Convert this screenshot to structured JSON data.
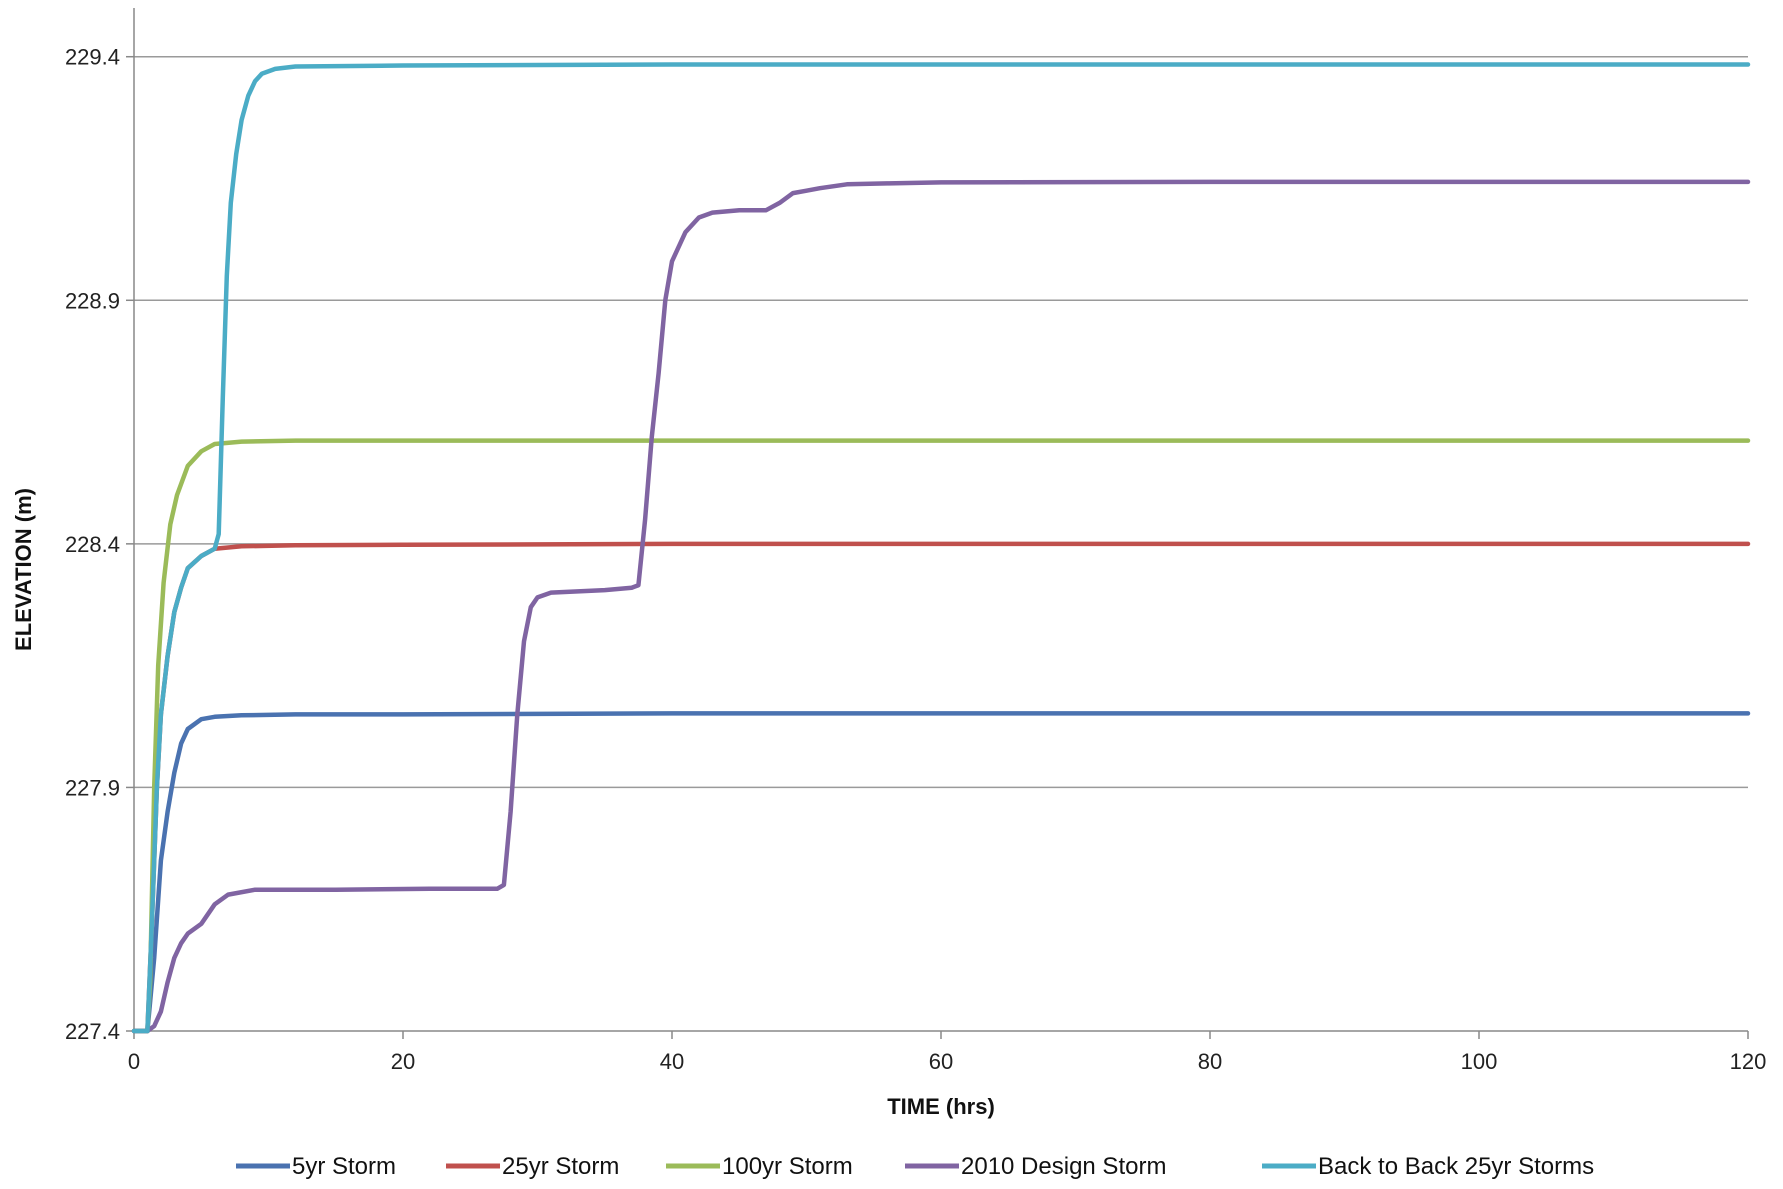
{
  "chart_data": {
    "type": "line",
    "title": "",
    "xlabel": "TIME (hrs)",
    "ylabel": "ELEVATION (m)",
    "xlim": [
      0,
      120
    ],
    "ylim": [
      227.4,
      229.5
    ],
    "x_ticks": [
      0,
      20,
      40,
      60,
      80,
      100,
      120
    ],
    "y_ticks": [
      227.4,
      227.9,
      228.4,
      228.9,
      229.4
    ],
    "grid": "horizontal",
    "legend_position": "bottom",
    "series": [
      {
        "name": "5yr Storm",
        "color": "#4a72b0",
        "points": [
          [
            0,
            227.4
          ],
          [
            1,
            227.4
          ],
          [
            1.5,
            227.55
          ],
          [
            2,
            227.75
          ],
          [
            2.5,
            227.85
          ],
          [
            3,
            227.93
          ],
          [
            3.5,
            227.99
          ],
          [
            4,
            228.02
          ],
          [
            5,
            228.04
          ],
          [
            6,
            228.045
          ],
          [
            8,
            228.048
          ],
          [
            12,
            228.05
          ],
          [
            20,
            228.05
          ],
          [
            40,
            228.052
          ],
          [
            60,
            228.052
          ],
          [
            80,
            228.052
          ],
          [
            100,
            228.052
          ],
          [
            120,
            228.052
          ]
        ]
      },
      {
        "name": "25yr Storm",
        "color": "#c0504d",
        "points": [
          [
            0,
            227.4
          ],
          [
            1,
            227.4
          ],
          [
            1.3,
            227.6
          ],
          [
            1.7,
            227.9
          ],
          [
            2,
            228.05
          ],
          [
            2.5,
            228.17
          ],
          [
            3,
            228.26
          ],
          [
            3.5,
            228.31
          ],
          [
            4,
            228.35
          ],
          [
            5,
            228.375
          ],
          [
            6,
            228.39
          ],
          [
            8,
            228.395
          ],
          [
            12,
            228.397
          ],
          [
            20,
            228.398
          ],
          [
            40,
            228.4
          ],
          [
            60,
            228.4
          ],
          [
            80,
            228.4
          ],
          [
            100,
            228.4
          ],
          [
            120,
            228.4
          ]
        ]
      },
      {
        "name": "100yr Storm",
        "color": "#9bbb59",
        "points": [
          [
            0,
            227.4
          ],
          [
            1,
            227.4
          ],
          [
            1.2,
            227.5
          ],
          [
            1.5,
            227.9
          ],
          [
            1.8,
            228.15
          ],
          [
            2.2,
            228.32
          ],
          [
            2.7,
            228.44
          ],
          [
            3.2,
            228.5
          ],
          [
            4,
            228.56
          ],
          [
            5,
            228.59
          ],
          [
            6,
            228.605
          ],
          [
            8,
            228.61
          ],
          [
            12,
            228.612
          ],
          [
            20,
            228.612
          ],
          [
            40,
            228.612
          ],
          [
            60,
            228.612
          ],
          [
            80,
            228.612
          ],
          [
            100,
            228.612
          ],
          [
            120,
            228.612
          ]
        ]
      },
      {
        "name": "2010 Design Storm",
        "color": "#8064a2",
        "points": [
          [
            0,
            227.4
          ],
          [
            1,
            227.4
          ],
          [
            1.5,
            227.41
          ],
          [
            2,
            227.44
          ],
          [
            2.5,
            227.5
          ],
          [
            3,
            227.55
          ],
          [
            3.5,
            227.58
          ],
          [
            4,
            227.6
          ],
          [
            5,
            227.62
          ],
          [
            6,
            227.66
          ],
          [
            7,
            227.68
          ],
          [
            9,
            227.69
          ],
          [
            15,
            227.69
          ],
          [
            22,
            227.692
          ],
          [
            27,
            227.692
          ],
          [
            27.5,
            227.7
          ],
          [
            28,
            227.85
          ],
          [
            28.5,
            228.05
          ],
          [
            29,
            228.2
          ],
          [
            29.5,
            228.27
          ],
          [
            30,
            228.29
          ],
          [
            31,
            228.3
          ],
          [
            35,
            228.305
          ],
          [
            37,
            228.31
          ],
          [
            37.5,
            228.315
          ],
          [
            38,
            228.45
          ],
          [
            38.5,
            228.62
          ],
          [
            39,
            228.75
          ],
          [
            39.5,
            228.9
          ],
          [
            40,
            228.98
          ],
          [
            41,
            229.04
          ],
          [
            42,
            229.07
          ],
          [
            43,
            229.08
          ],
          [
            45,
            229.085
          ],
          [
            47,
            229.085
          ],
          [
            48,
            229.1
          ],
          [
            49,
            229.12
          ],
          [
            50,
            229.125
          ],
          [
            51,
            229.13
          ],
          [
            53,
            229.138
          ],
          [
            56,
            229.14
          ],
          [
            60,
            229.142
          ],
          [
            80,
            229.143
          ],
          [
            100,
            229.143
          ],
          [
            120,
            229.143
          ]
        ]
      },
      {
        "name": "Back to Back 25yr Storms",
        "color": "#4bacc6",
        "points": [
          [
            0,
            227.4
          ],
          [
            1,
            227.4
          ],
          [
            1.3,
            227.6
          ],
          [
            1.7,
            227.9
          ],
          [
            2,
            228.05
          ],
          [
            2.5,
            228.17
          ],
          [
            3,
            228.26
          ],
          [
            3.5,
            228.31
          ],
          [
            4,
            228.35
          ],
          [
            5,
            228.375
          ],
          [
            6,
            228.39
          ],
          [
            6.3,
            228.42
          ],
          [
            6.6,
            228.7
          ],
          [
            6.9,
            228.95
          ],
          [
            7.2,
            229.1
          ],
          [
            7.6,
            229.2
          ],
          [
            8,
            229.27
          ],
          [
            8.5,
            229.32
          ],
          [
            9,
            229.35
          ],
          [
            9.5,
            229.365
          ],
          [
            10.5,
            229.375
          ],
          [
            12,
            229.38
          ],
          [
            20,
            229.382
          ],
          [
            40,
            229.384
          ],
          [
            60,
            229.384
          ],
          [
            80,
            229.384
          ],
          [
            100,
            229.384
          ],
          [
            120,
            229.384
          ]
        ]
      }
    ]
  }
}
